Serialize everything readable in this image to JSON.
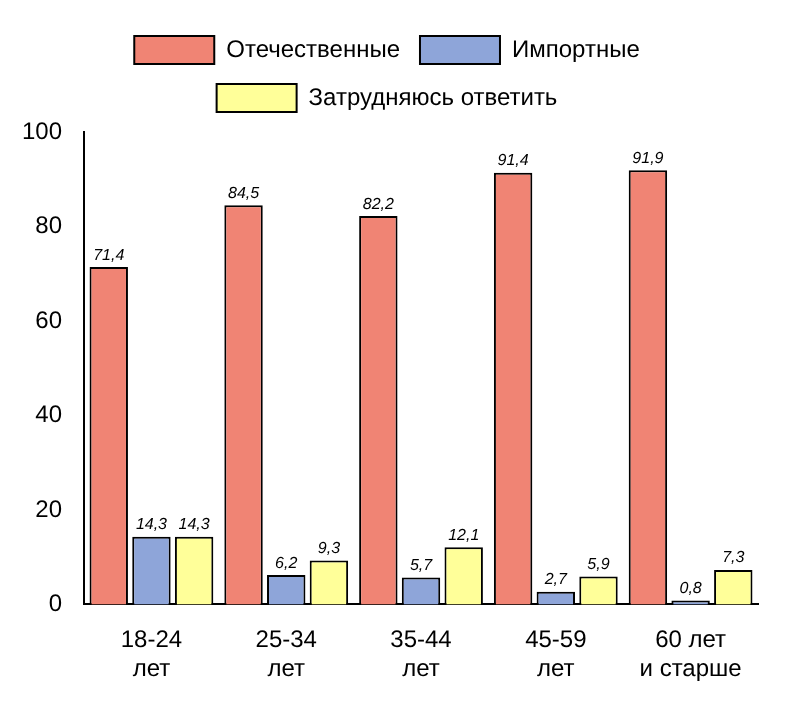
{
  "chart_data": {
    "type": "bar",
    "categories": [
      "18-24\nлет",
      "25-34\nлет",
      "35-44\nлет",
      "45-59\nлет",
      "60 лет\nи старше"
    ],
    "series": [
      {
        "name": "Отечественные",
        "color": "#f08474",
        "values": [
          71.4,
          84.5,
          82.2,
          91.4,
          91.9
        ],
        "value_labels": [
          "71,4",
          "84,5",
          "82,2",
          "91,4",
          "91,9"
        ]
      },
      {
        "name": "Импортные",
        "color": "#8ea5d9",
        "values": [
          14.3,
          6.2,
          5.7,
          2.7,
          0.8
        ],
        "value_labels": [
          "14,3",
          "6,2",
          "5,7",
          "2,7",
          "0,8"
        ]
      },
      {
        "name": "Затрудняюсь ответить",
        "color": "#ffff99",
        "values": [
          14.3,
          9.3,
          12.1,
          5.9,
          7.3
        ],
        "value_labels": [
          "14,3",
          "9,3",
          "12,1",
          "5,9",
          "7,3"
        ]
      }
    ],
    "ylim": [
      0,
      100
    ],
    "yticks": [
      0,
      20,
      40,
      60,
      80,
      100
    ],
    "grid": false,
    "legend": "top"
  }
}
